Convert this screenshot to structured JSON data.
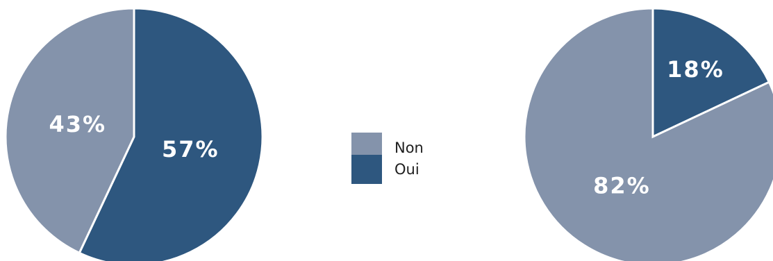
{
  "chart_data": [
    {
      "type": "pie",
      "categories": [
        "Non",
        "Oui"
      ],
      "values": [
        43,
        57
      ],
      "labels": [
        "43%",
        "57%"
      ],
      "colors": [
        "#8493ab",
        "#2e577f"
      ],
      "start": "top",
      "direction": "counter-clockwise"
    },
    {
      "type": "pie",
      "categories": [
        "Non",
        "Oui"
      ],
      "values": [
        82,
        18
      ],
      "labels": [
        "82%",
        "18%"
      ],
      "colors": [
        "#8493ab",
        "#2e577f"
      ],
      "start": "top",
      "direction": "counter-clockwise"
    }
  ],
  "legend": {
    "placement": "center",
    "items": [
      {
        "label": "Non",
        "color": "#8493ab"
      },
      {
        "label": "Oui",
        "color": "#2e577f"
      }
    ]
  }
}
